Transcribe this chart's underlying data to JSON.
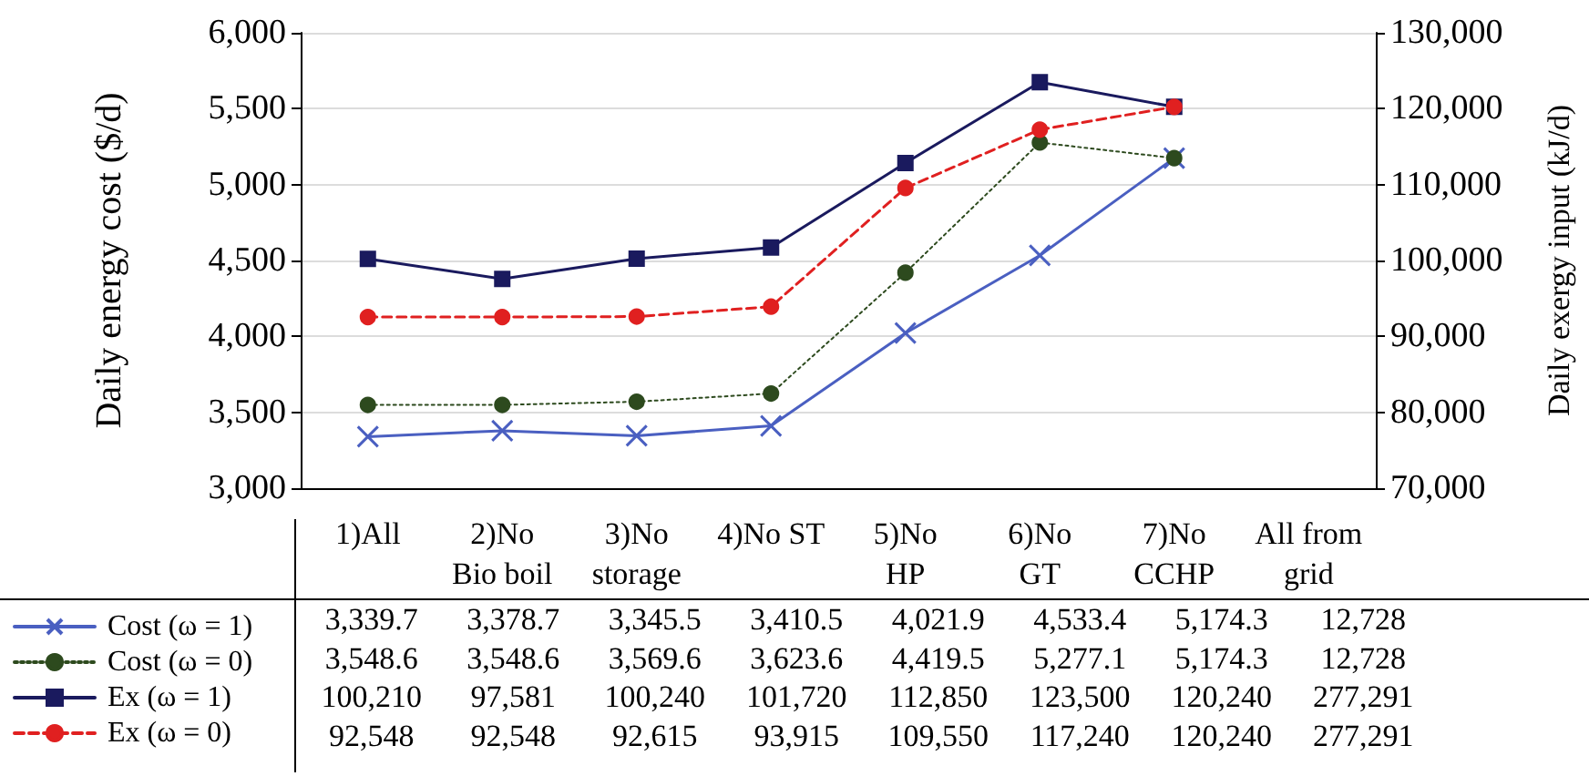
{
  "chart_data": {
    "type": "line",
    "ylabel": "Daily energy cost ($/d)",
    "y2label": "Daily exergy input (kJ/d)",
    "categories": [
      "1)All",
      "2)No\nBio boil",
      "3)No\nstorage",
      "4)No ST",
      "5)No\nHP",
      "6)No\nGT",
      "7)No\nCCHP",
      "All from\ngrid"
    ],
    "ylim": [
      3000,
      6000
    ],
    "yticks": [
      {
        "value": 3000,
        "label": "3,000"
      },
      {
        "value": 3500,
        "label": "3,500"
      },
      {
        "value": 4000,
        "label": "4,000"
      },
      {
        "value": 4500,
        "label": "4,500"
      },
      {
        "value": 5000,
        "label": "5,000"
      },
      {
        "value": 5500,
        "label": "5,500"
      },
      {
        "value": 6000,
        "label": "6,000"
      }
    ],
    "y2lim": [
      70000,
      130000
    ],
    "y2ticks": [
      {
        "value": 70000,
        "label": "70,000"
      },
      {
        "value": 80000,
        "label": "80,000"
      },
      {
        "value": 90000,
        "label": "90,000"
      },
      {
        "value": 100000,
        "label": "100,000"
      },
      {
        "value": 110000,
        "label": "110,000"
      },
      {
        "value": 120000,
        "label": "120,000"
      },
      {
        "value": 130000,
        "label": "130,000"
      }
    ],
    "grid": "y",
    "legend": "bottom left",
    "series": [
      {
        "name": "Cost (ω = 1)",
        "color": "#4a5fc1",
        "marker": "cross",
        "line_style": "solid",
        "values": [
          3339.7,
          3378.7,
          3345.5,
          3410.5,
          4021.9,
          4533.4,
          5174.3,
          null
        ],
        "value_labels": [
          "3,339.7",
          "3,378.7",
          "3,345.5",
          "3,410.5",
          "4,021.9",
          "4,533.4",
          "5,174.3",
          "12,728"
        ]
      },
      {
        "name": "Cost (ω = 0)",
        "color": "#2d4a1e",
        "marker": "circle",
        "line_style": "dotted",
        "values": [
          3548.6,
          3548.6,
          3569.6,
          3623.6,
          4419.5,
          5277.1,
          5174.3,
          null
        ],
        "value_labels": [
          "3,548.6",
          "3,548.6",
          "3,569.6",
          "3,623.6",
          "4,419.5",
          "5,277.1",
          "5,174.3",
          "12,728"
        ]
      },
      {
        "name": "Ex (ω = 1)",
        "color": "#1a1a5e",
        "marker": "square",
        "line_style": "solid",
        "axis": "y2",
        "values": [
          100210,
          97581,
          100240,
          101720,
          112850,
          123500,
          120240,
          null
        ],
        "value_labels": [
          "100,210",
          "97,581",
          "100,240",
          "101,720",
          "112,850",
          "123,500",
          "120,240",
          "277,291"
        ]
      },
      {
        "name": "Ex (ω = 0)",
        "color": "#e02020",
        "marker": "circle",
        "line_style": "dashed",
        "axis": "y2",
        "values": [
          92548,
          92548,
          92615,
          93915,
          109550,
          117240,
          120240,
          null
        ],
        "value_labels": [
          "92,548",
          "92,548",
          "92,615",
          "93,915",
          "109,550",
          "117,240",
          "120,240",
          "277,291"
        ]
      }
    ]
  }
}
